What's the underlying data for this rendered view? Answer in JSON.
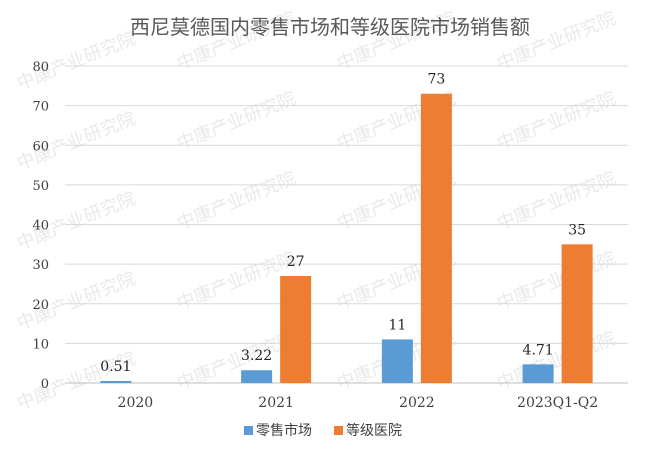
{
  "chart_data": {
    "type": "bar",
    "title": "西尼莫德国内零售市场和等级医院市场销售额",
    "categories": [
      "2020",
      "2021",
      "2022",
      "2023Q1-Q2"
    ],
    "series": [
      {
        "name": "零售市场",
        "values": [
          0.51,
          3.22,
          11,
          4.71
        ],
        "labels": [
          "0.51",
          "3.22",
          "11",
          "4.71"
        ],
        "color": "#5B9BD5"
      },
      {
        "name": "等级医院",
        "values": [
          null,
          27,
          73,
          35
        ],
        "labels": [
          "",
          "27",
          "73",
          "35"
        ],
        "color": "#ED7D31"
      }
    ],
    "yticks": [
      0,
      10,
      20,
      30,
      40,
      50,
      60,
      70,
      80
    ],
    "ylim": [
      0,
      80
    ],
    "grid": true,
    "legend_position": "bottom"
  },
  "watermark": "中康产业研究院"
}
